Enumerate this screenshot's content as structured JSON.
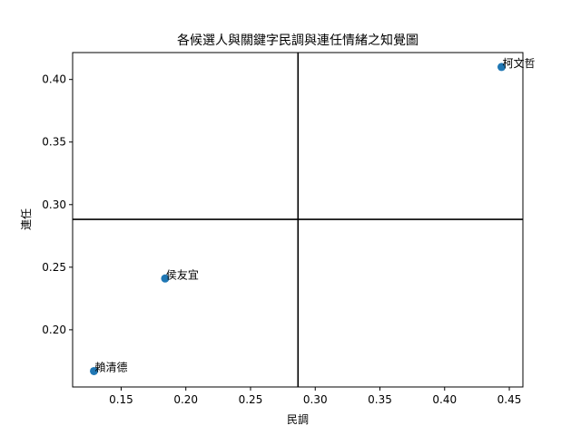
{
  "chart_data": {
    "type": "scatter",
    "title": "各候選人與關鍵字民調與連任情緒之知覺圖",
    "xlabel": "民調",
    "ylabel": "連任",
    "xlim": [
      0.1125,
      0.4605
    ],
    "ylim": [
      0.1543,
      0.4215
    ],
    "xticks": [
      0.15,
      0.2,
      0.25,
      0.3,
      0.35,
      0.4,
      0.45
    ],
    "xtick_labels": [
      "0.15",
      "0.20",
      "0.25",
      "0.30",
      "0.35",
      "0.40",
      "0.45"
    ],
    "yticks": [
      0.2,
      0.25,
      0.3,
      0.35,
      0.4
    ],
    "ytick_labels": [
      "0.20",
      "0.25",
      "0.30",
      "0.35",
      "0.40"
    ],
    "grid": false,
    "reference_lines": {
      "x": 0.2867,
      "y": 0.2882
    },
    "marker_color": "#1f77b4",
    "points": [
      {
        "label": "柯文哲",
        "x": 0.444,
        "y": 0.41
      },
      {
        "label": "侯友宜",
        "x": 0.184,
        "y": 0.241
      },
      {
        "label": "賴清德",
        "x": 0.129,
        "y": 0.167
      }
    ]
  }
}
